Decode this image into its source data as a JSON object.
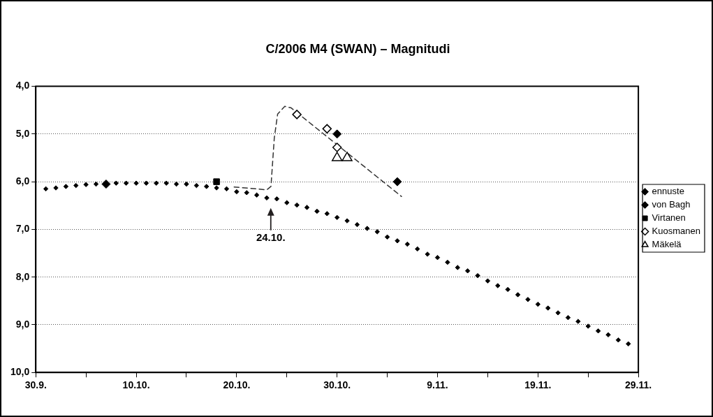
{
  "chart_data": {
    "type": "scatter",
    "title": "C/2006 M4 (SWAN) – Magnitudi",
    "xlim": [
      "2006-09-30",
      "2006-11-29"
    ],
    "xticks": [
      {
        "value": "2006-09-30",
        "label": "30.9."
      },
      {
        "value": "2006-10-05",
        "label": null
      },
      {
        "value": "2006-10-10",
        "label": "10.10."
      },
      {
        "value": "2006-10-15",
        "label": null
      },
      {
        "value": "2006-10-20",
        "label": "20.10."
      },
      {
        "value": "2006-10-25",
        "label": null
      },
      {
        "value": "2006-10-30",
        "label": "30.10."
      },
      {
        "value": "2006-11-04",
        "label": null
      },
      {
        "value": "2006-11-09",
        "label": "9.11."
      },
      {
        "value": "2006-11-14",
        "label": null
      },
      {
        "value": "2006-11-19",
        "label": "19.11."
      },
      {
        "value": "2006-11-24",
        "label": null
      },
      {
        "value": "2006-11-29",
        "label": "29.11."
      }
    ],
    "ylim": [
      10,
      4
    ],
    "yticks": [
      {
        "value": 4,
        "label": "4,0"
      },
      {
        "value": 5,
        "label": "5,0"
      },
      {
        "value": 6,
        "label": "6,0"
      },
      {
        "value": 7,
        "label": "7,0"
      },
      {
        "value": 8,
        "label": "8,0"
      },
      {
        "value": 9,
        "label": "9,0"
      },
      {
        "value": 10,
        "label": "10,0"
      }
    ],
    "grid": "y",
    "legend": "right",
    "annotations": [
      "24.10."
    ],
    "series": [
      {
        "name": "ennuste",
        "marker": "diamond",
        "color": "#000000",
        "x": [
          "2006-10-01",
          "2006-10-02",
          "2006-10-03",
          "2006-10-04",
          "2006-10-05",
          "2006-10-06",
          "2006-10-07",
          "2006-10-08",
          "2006-10-09",
          "2006-10-10",
          "2006-10-11",
          "2006-10-12",
          "2006-10-13",
          "2006-10-14",
          "2006-10-15",
          "2006-10-16",
          "2006-10-17",
          "2006-10-18",
          "2006-10-19",
          "2006-10-20",
          "2006-10-21",
          "2006-10-22",
          "2006-10-23",
          "2006-10-24",
          "2006-10-25",
          "2006-10-26",
          "2006-10-27",
          "2006-10-28",
          "2006-10-29",
          "2006-10-30",
          "2006-10-31",
          "2006-11-01",
          "2006-11-02",
          "2006-11-03",
          "2006-11-04",
          "2006-11-05",
          "2006-11-06",
          "2006-11-07",
          "2006-11-08",
          "2006-11-09",
          "2006-11-10",
          "2006-11-11",
          "2006-11-12",
          "2006-11-13",
          "2006-11-14",
          "2006-11-15",
          "2006-11-16",
          "2006-11-17",
          "2006-11-18",
          "2006-11-19",
          "2006-11-20",
          "2006-11-21",
          "2006-11-22",
          "2006-11-23",
          "2006-11-24",
          "2006-11-25",
          "2006-11-26",
          "2006-11-27",
          "2006-11-28"
        ],
        "values": [
          6.15,
          6.13,
          6.1,
          6.08,
          6.06,
          6.05,
          null,
          6.03,
          6.03,
          6.03,
          6.03,
          6.03,
          6.03,
          6.05,
          6.05,
          6.08,
          6.1,
          6.13,
          6.15,
          6.21,
          6.23,
          6.28,
          6.34,
          6.36,
          6.44,
          6.49,
          6.54,
          6.62,
          6.67,
          6.75,
          6.82,
          6.9,
          6.98,
          7.05,
          7.16,
          7.24,
          7.31,
          7.41,
          7.52,
          7.59,
          7.69,
          7.8,
          7.87,
          7.97,
          8.08,
          8.18,
          8.26,
          8.37,
          8.47,
          8.57,
          8.65,
          8.75,
          8.85,
          8.93,
          9.03,
          9.13,
          9.21,
          9.32,
          9.4
        ]
      },
      {
        "type": "line",
        "marker": "none",
        "line_style": "dashed",
        "color": "#333333",
        "x": [
          "2006-10-19T18:00",
          "2006-10-23T00:00",
          "2006-10-23T10:00",
          "2006-10-23T18:00",
          "2006-10-24T02:00",
          "2006-10-24T19:00",
          "2006-10-25T10:00",
          "2006-11-05T10:00"
        ],
        "values": [
          6.11,
          6.17,
          6.1,
          5.08,
          4.58,
          4.42,
          4.45,
          6.31
        ]
      },
      {
        "name": "von Bagh",
        "marker": "diamond",
        "color": "#000000",
        "x": [
          "2006-10-07",
          "2006-10-30",
          "2006-11-05"
        ],
        "values": [
          6.05,
          5.0,
          6.0
        ]
      },
      {
        "name": "Virtanen",
        "marker": "square",
        "color": "#000000",
        "x": [
          "2006-10-18"
        ],
        "values": [
          6.0
        ]
      },
      {
        "name": "Kuosmanen",
        "marker": "diamond",
        "color": "#000000",
        "x": [
          "2006-10-26",
          "2006-10-29",
          "2006-10-30"
        ],
        "values": [
          4.59,
          4.89,
          5.28
        ]
      },
      {
        "name": "Mäkelä",
        "marker": "triangle",
        "color": "#000000",
        "x": [
          "2006-10-30",
          "2006-10-31"
        ],
        "values": [
          5.5,
          5.5
        ]
      }
    ]
  }
}
